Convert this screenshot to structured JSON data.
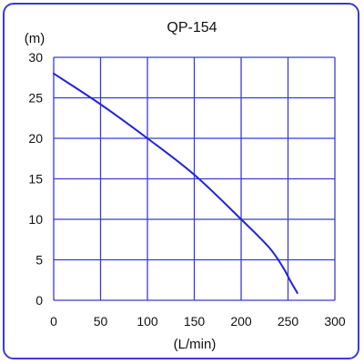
{
  "chart_data": {
    "type": "line",
    "title": "QP-154",
    "xlabel": "(L/min)",
    "ylabel": "(m)",
    "xlim": [
      0,
      300
    ],
    "ylim": [
      0,
      30
    ],
    "xticks": [
      0,
      50,
      100,
      150,
      200,
      250,
      300
    ],
    "yticks": [
      0,
      5,
      10,
      15,
      20,
      25,
      30
    ],
    "grid": true,
    "line_color": "#2222dd",
    "grid_color": "#3a3ad6",
    "series": [
      {
        "x": [
          0,
          50,
          100,
          150,
          200,
          230,
          245,
          252,
          260
        ],
        "y": [
          28,
          24.2,
          20,
          15.5,
          10,
          6.5,
          4,
          2.5,
          0.9
        ]
      }
    ]
  }
}
